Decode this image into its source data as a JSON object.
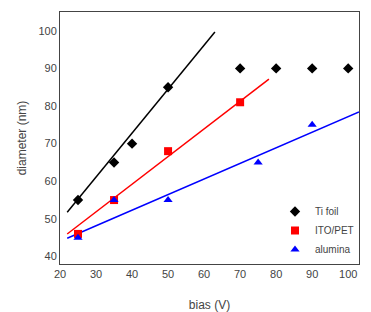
{
  "chart_data": {
    "type": "scatter",
    "xlabel": "bias (V)",
    "ylabel": "diameter (nm)",
    "xlim": [
      20,
      103
    ],
    "ylim": [
      38,
      105
    ],
    "xticks": [
      20,
      30,
      40,
      50,
      60,
      70,
      80,
      90,
      100
    ],
    "yticks": [
      40,
      50,
      60,
      70,
      80,
      90,
      100
    ],
    "grid": false,
    "legend": "lower right",
    "series": [
      {
        "name": "Ti foil",
        "type": "scatter",
        "marker": "diamond",
        "color": "#000000",
        "x": [
          25,
          35,
          40,
          50,
          70,
          80,
          90,
          100
        ],
        "values": [
          55,
          65,
          70,
          85,
          90,
          90,
          90,
          90
        ]
      },
      {
        "name": "ITO/PET",
        "type": "scatter",
        "marker": "square",
        "color": "#ff0000",
        "x": [
          25,
          35,
          50,
          70
        ],
        "values": [
          46,
          55,
          68,
          81
        ]
      },
      {
        "name": "alumina",
        "type": "scatter",
        "marker": "triangle-up",
        "color": "#0000ff",
        "x": [
          25,
          35,
          50,
          75,
          90
        ],
        "values": [
          45,
          55,
          55,
          65,
          75
        ]
      },
      {
        "type": "line",
        "line_style": "solid",
        "color": "#000000",
        "x": [
          22,
          63
        ],
        "values": [
          51.74,
          99.71
        ]
      },
      {
        "type": "line",
        "line_style": "solid",
        "color": "#ff0000",
        "x": [
          22,
          78
        ],
        "values": [
          45.97,
          87.13
        ]
      },
      {
        "type": "line",
        "line_style": "solid",
        "color": "#0000ff",
        "x": [
          22,
          103
        ],
        "values": [
          44.83,
          78.445
        ]
      }
    ]
  }
}
